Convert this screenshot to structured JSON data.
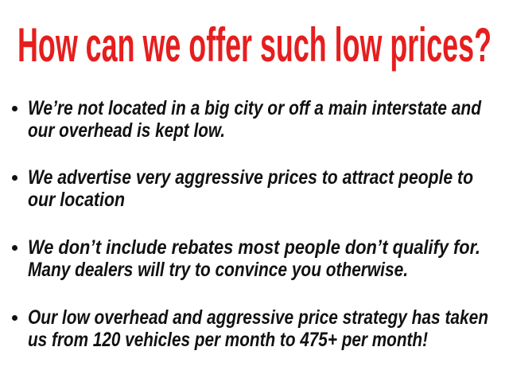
{
  "title": "How can we offer such low prices?",
  "colors": {
    "title": "#e61e1e",
    "text": "#111111"
  },
  "bullets": [
    {
      "lines": [
        "We’re not located in a big city or off a main interstate and",
        "our overhead is kept low."
      ]
    },
    {
      "lines": [
        "We advertise very aggressive prices to attract people to",
        "our location"
      ]
    },
    {
      "lines": [
        "We don’t include rebates most people don’t qualify for.",
        "Many dealers will try to convince you otherwise."
      ]
    },
    {
      "lines": [
        "Our low overhead and aggressive price strategy has taken",
        "us from 120 vehicles per month to 475+ per month!"
      ]
    }
  ]
}
